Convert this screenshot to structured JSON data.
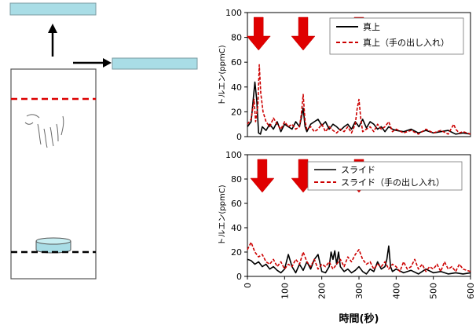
{
  "chart_data": [
    {
      "type": "line",
      "xlabel": "",
      "ylabel": "トルエン(ppmC)",
      "xlim": [
        0,
        600
      ],
      "ylim": [
        0,
        100
      ],
      "yticks": [
        0,
        20,
        40,
        60,
        80,
        100
      ],
      "grid": false,
      "legend_position": "top-right",
      "markers": [
        {
          "x": 30
        },
        {
          "x": 150
        },
        {
          "x": 300
        }
      ],
      "series": [
        {
          "name": "真上",
          "color": "#000000",
          "style": "solid",
          "x": [
            0,
            10,
            20,
            25,
            30,
            35,
            40,
            50,
            60,
            70,
            80,
            90,
            100,
            110,
            120,
            130,
            140,
            145,
            150,
            155,
            160,
            170,
            180,
            190,
            200,
            210,
            220,
            230,
            240,
            250,
            260,
            270,
            280,
            290,
            300,
            310,
            320,
            330,
            340,
            350,
            360,
            370,
            380,
            390,
            400,
            420,
            440,
            460,
            480,
            500,
            520,
            540,
            560,
            580,
            600
          ],
          "values": [
            8,
            12,
            44,
            30,
            3,
            2,
            8,
            5,
            10,
            6,
            12,
            4,
            10,
            8,
            6,
            12,
            8,
            15,
            23,
            8,
            4,
            10,
            12,
            14,
            9,
            12,
            6,
            10,
            8,
            5,
            8,
            10,
            6,
            12,
            8,
            14,
            7,
            12,
            10,
            6,
            8,
            4,
            8,
            6,
            5,
            4,
            6,
            3,
            5,
            3,
            4,
            5,
            2,
            3,
            2
          ]
        },
        {
          "name": "真上（手の出し入れ）",
          "color": "#cc0000",
          "style": "dashed",
          "x": [
            0,
            10,
            18,
            22,
            28,
            32,
            36,
            42,
            50,
            60,
            70,
            80,
            90,
            100,
            110,
            120,
            130,
            140,
            145,
            150,
            155,
            160,
            170,
            180,
            190,
            200,
            210,
            220,
            230,
            240,
            250,
            260,
            270,
            280,
            290,
            295,
            300,
            305,
            310,
            320,
            330,
            340,
            350,
            360,
            370,
            380,
            390,
            400,
            420,
            440,
            460,
            480,
            500,
            520,
            540,
            555,
            560,
            570,
            580,
            600
          ],
          "values": [
            10,
            14,
            30,
            12,
            25,
            58,
            35,
            20,
            12,
            8,
            15,
            10,
            6,
            12,
            8,
            10,
            6,
            8,
            18,
            34,
            12,
            6,
            8,
            4,
            6,
            10,
            4,
            8,
            5,
            3,
            6,
            4,
            8,
            3,
            10,
            22,
            30,
            14,
            4,
            6,
            8,
            4,
            10,
            6,
            8,
            12,
            4,
            6,
            3,
            5,
            2,
            6,
            3,
            5,
            2,
            10,
            6,
            3,
            4,
            2
          ]
        }
      ]
    },
    {
      "type": "line",
      "xlabel": "時間(秒)",
      "ylabel": "トルエン(ppmC)",
      "xlim": [
        0,
        600
      ],
      "ylim": [
        0,
        100
      ],
      "xticks": [
        0,
        100,
        200,
        300,
        400,
        500,
        600
      ],
      "yticks": [
        0,
        20,
        40,
        60,
        80,
        100
      ],
      "grid": false,
      "legend_position": "top-right",
      "markers": [
        {
          "x": 40
        },
        {
          "x": 150
        },
        {
          "x": 300
        }
      ],
      "series": [
        {
          "name": "スライド",
          "color": "#000000",
          "style": "solid",
          "x": [
            0,
            10,
            20,
            30,
            40,
            50,
            60,
            70,
            80,
            90,
            100,
            110,
            120,
            130,
            140,
            150,
            160,
            170,
            180,
            190,
            200,
            210,
            220,
            225,
            230,
            235,
            240,
            245,
            250,
            260,
            270,
            280,
            290,
            300,
            310,
            320,
            330,
            340,
            350,
            360,
            370,
            375,
            380,
            385,
            390,
            400,
            420,
            440,
            460,
            480,
            500,
            520,
            540,
            560,
            580,
            600
          ],
          "values": [
            14,
            13,
            10,
            12,
            8,
            10,
            6,
            8,
            5,
            3,
            6,
            18,
            8,
            3,
            10,
            5,
            12,
            6,
            14,
            18,
            4,
            3,
            8,
            20,
            14,
            21,
            10,
            20,
            8,
            4,
            6,
            3,
            5,
            8,
            4,
            2,
            6,
            4,
            12,
            6,
            8,
            14,
            25,
            8,
            4,
            6,
            3,
            5,
            2,
            6,
            3,
            4,
            2,
            3,
            2,
            3
          ]
        },
        {
          "name": "スライド（手の出し入れ）",
          "color": "#cc0000",
          "style": "dashed",
          "x": [
            0,
            10,
            20,
            30,
            40,
            50,
            60,
            70,
            80,
            90,
            100,
            110,
            120,
            130,
            140,
            150,
            160,
            170,
            180,
            190,
            200,
            210,
            220,
            230,
            240,
            250,
            260,
            270,
            280,
            290,
            300,
            310,
            320,
            330,
            340,
            350,
            360,
            370,
            380,
            390,
            400,
            410,
            420,
            430,
            440,
            450,
            460,
            470,
            480,
            490,
            500,
            510,
            520,
            530,
            540,
            550,
            560,
            570,
            580,
            600
          ],
          "values": [
            22,
            28,
            20,
            16,
            18,
            12,
            10,
            14,
            8,
            12,
            6,
            10,
            8,
            14,
            10,
            20,
            12,
            8,
            14,
            6,
            10,
            8,
            12,
            6,
            10,
            14,
            8,
            16,
            12,
            18,
            22,
            14,
            10,
            12,
            6,
            10,
            8,
            12,
            6,
            10,
            8,
            4,
            12,
            6,
            8,
            14,
            6,
            10,
            4,
            8,
            6,
            10,
            4,
            12,
            6,
            8,
            4,
            10,
            6,
            4
          ]
        }
      ]
    }
  ]
}
